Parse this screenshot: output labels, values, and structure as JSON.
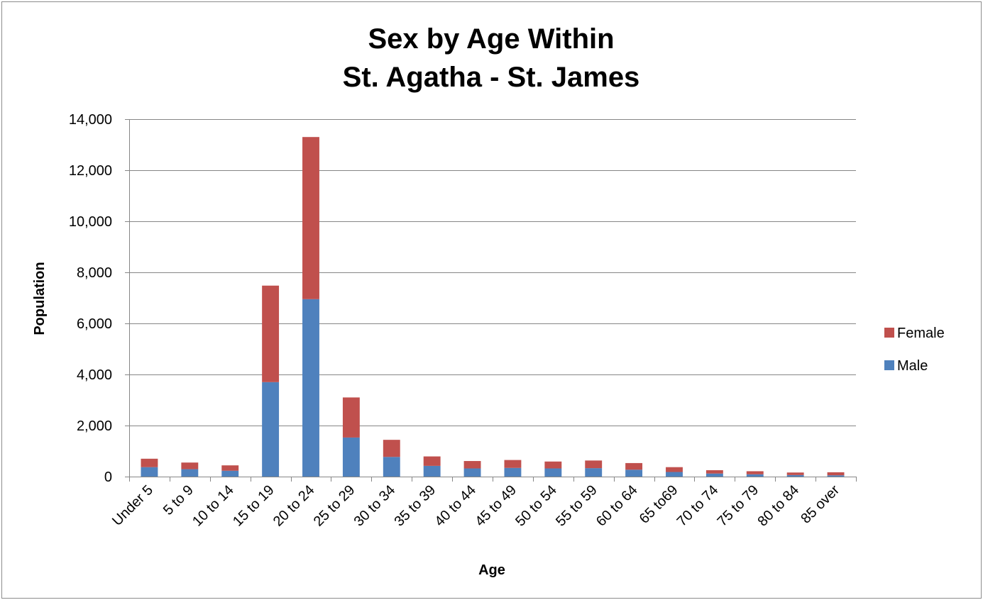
{
  "chart_data": {
    "type": "bar",
    "stacked": true,
    "title_lines": [
      "Sex by Age Within",
      "St. Agatha - St. James"
    ],
    "xlabel": "Age",
    "ylabel": "Population",
    "ylim": [
      0,
      14000
    ],
    "yticks": [
      0,
      2000,
      4000,
      6000,
      8000,
      10000,
      12000,
      14000
    ],
    "ytick_labels": [
      "0",
      "2,000",
      "4,000",
      "6,000",
      "8,000",
      "10,000",
      "12,000",
      "14,000"
    ],
    "grid": true,
    "legend_position": "right",
    "categories": [
      "Under 5",
      "5 to 9",
      "10 to 14",
      "15 to 19",
      "20 to 24",
      "25 to 29",
      "30 to 34",
      "35 to 39",
      "40 to 44",
      "45 to 49",
      "50 to 54",
      "55 to 59",
      "60 to 64",
      "65 to69",
      "70 to 74",
      "75 to 79",
      "80 to 84",
      "85 over"
    ],
    "series": [
      {
        "name": "Male",
        "color": "#4f81bd",
        "values": [
          370,
          290,
          230,
          3700,
          6950,
          1530,
          770,
          420,
          320,
          340,
          320,
          330,
          270,
          180,
          120,
          90,
          60,
          50
        ]
      },
      {
        "name": "Female",
        "color": "#c0504d",
        "values": [
          330,
          260,
          210,
          3780,
          6350,
          1570,
          670,
          370,
          290,
          310,
          270,
          300,
          260,
          190,
          130,
          120,
          100,
          120
        ]
      }
    ],
    "legend_order": [
      "Female",
      "Male"
    ]
  }
}
